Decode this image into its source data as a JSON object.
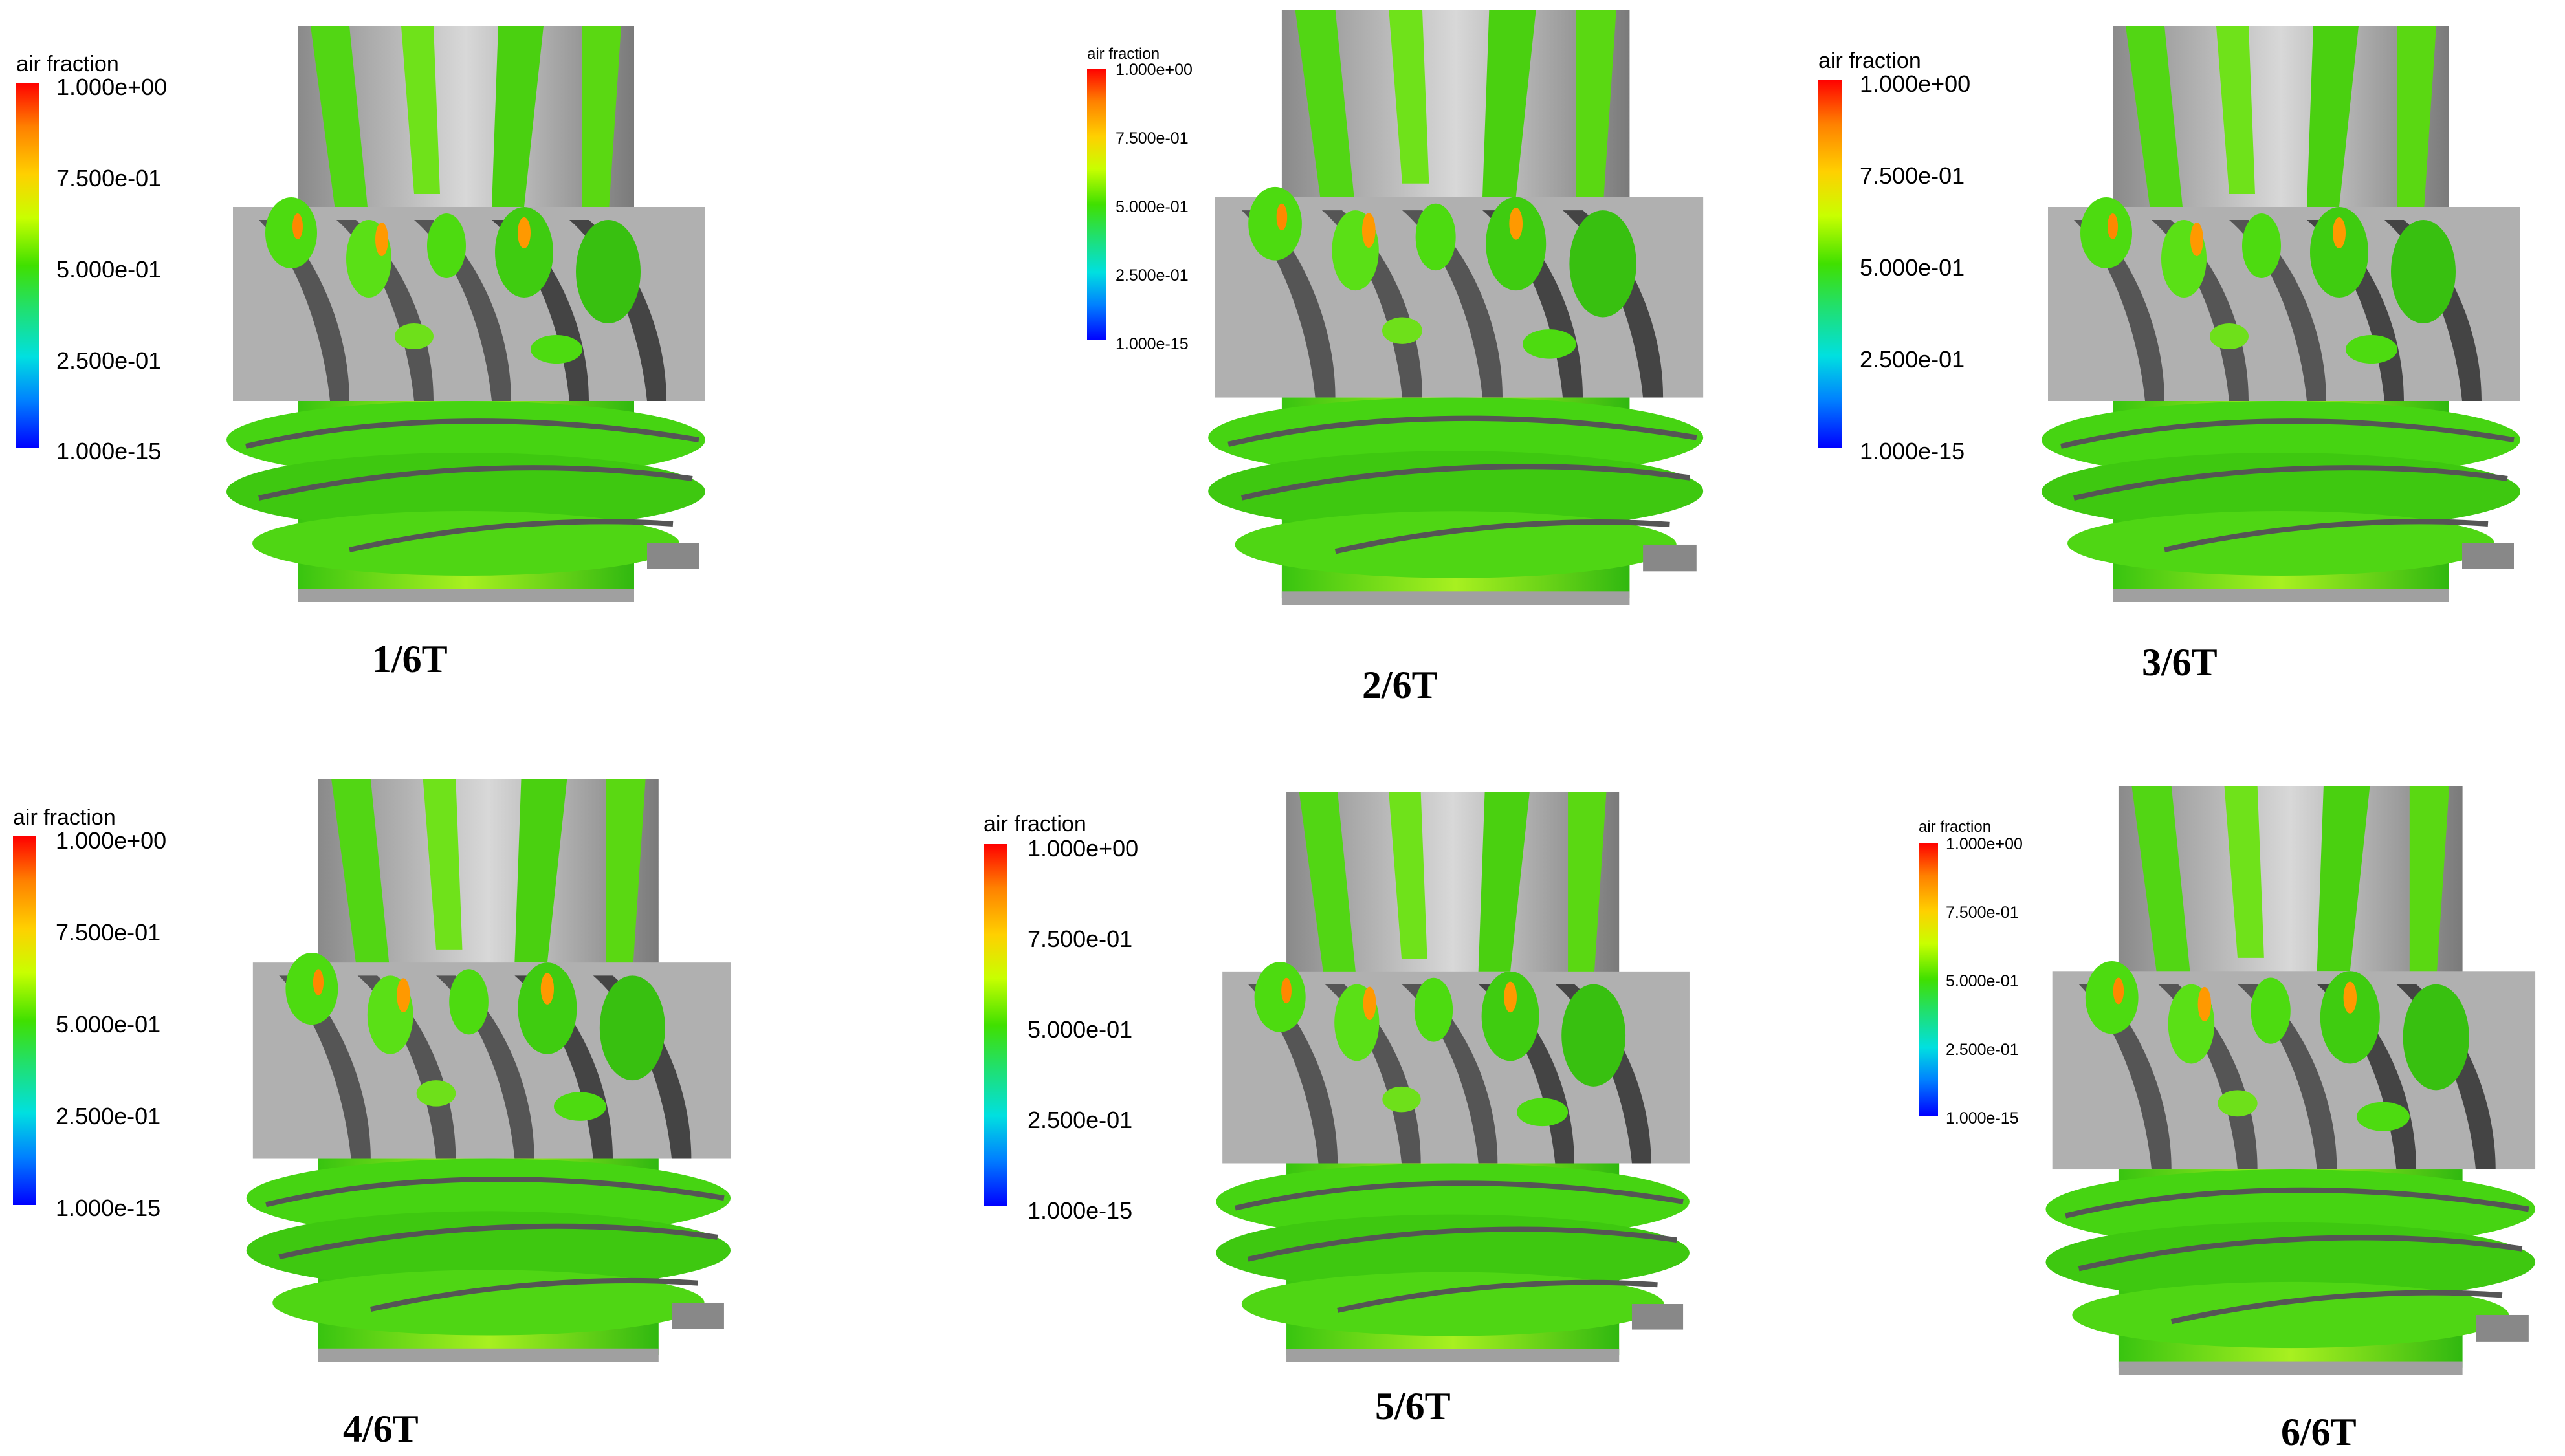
{
  "legend": {
    "title": "air fraction",
    "ticks": [
      "1.000e+00",
      "7.500e-01",
      "5.000e-01",
      "2.500e-01"
    ],
    "min_label_long": "1.000e-15",
    "colors": [
      "#ff0000",
      "#ffd000",
      "#40e000",
      "#00e0e0",
      "#0000ff"
    ]
  },
  "panels": [
    {
      "caption": "1/6T",
      "legend_style": "long",
      "time_fraction": 0.1667
    },
    {
      "caption": "2/6T",
      "legend_style": "small",
      "time_fraction": 0.3333
    },
    {
      "caption": "3/6T",
      "legend_style": "long",
      "time_fraction": 0.5
    },
    {
      "caption": "4/6T",
      "legend_style": "long",
      "time_fraction": 0.6667
    },
    {
      "caption": "5/6T",
      "legend_style": "long",
      "time_fraction": 0.8333
    },
    {
      "caption": "6/6T",
      "legend_style": "small",
      "time_fraction": 1.0
    }
  ],
  "small_legend_ticks": [
    "1.000e+00",
    "7.500e-01",
    "5.000e-01",
    "2.500e-01",
    "1.000e-15"
  ],
  "scene": {
    "shaft_color": "#a8a8a8",
    "blade_dark": "#555555",
    "fluid_green": "#4ddb10",
    "fluid_light": "#9ef010",
    "hotspot": "#ff9900"
  }
}
